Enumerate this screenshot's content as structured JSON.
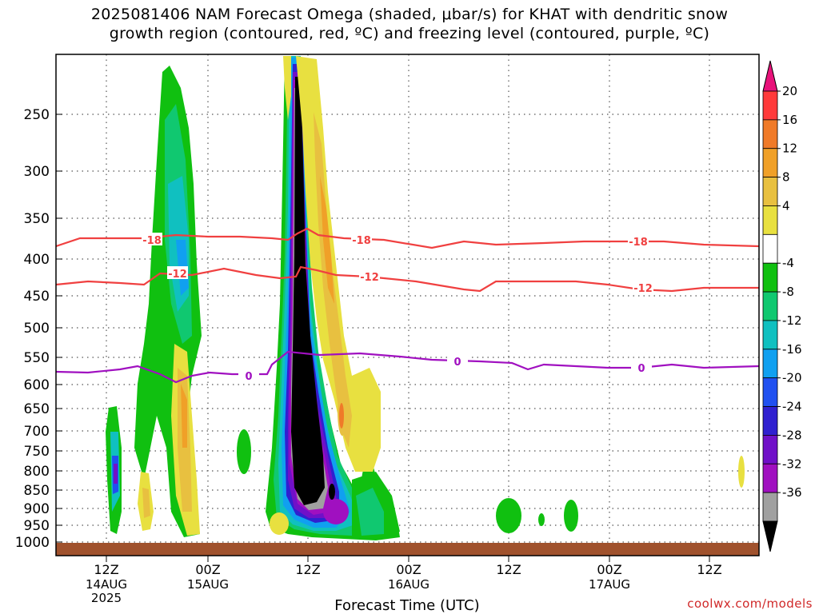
{
  "chart_data": {
    "type": "heatmap",
    "title_line1": "2025081406 NAM Forecast Omega (shaded, μbar/s) for KHAT with dendritic snow",
    "title_line2": "growth region (contoured, red, ºC) and freezing level (contoured, purple, ºC)",
    "xlabel": "Forecast Time (UTC)",
    "ylabel": "",
    "y_scale": "pressure (hPa), inverted",
    "y_ticks": [
      "250",
      "300",
      "350",
      "400",
      "450",
      "500",
      "550",
      "600",
      "650",
      "700",
      "750",
      "800",
      "850",
      "900",
      "950",
      "1000"
    ],
    "x_ticks": [
      {
        "label": "12Z",
        "sub1": "14AUG",
        "sub2": "2025"
      },
      {
        "label": "00Z",
        "sub1": "15AUG",
        "sub2": ""
      },
      {
        "label": "12Z",
        "sub1": "",
        "sub2": ""
      },
      {
        "label": "00Z",
        "sub1": "16AUG",
        "sub2": ""
      },
      {
        "label": "12Z",
        "sub1": "",
        "sub2": ""
      },
      {
        "label": "00Z",
        "sub1": "17AUG",
        "sub2": ""
      },
      {
        "label": "12Z",
        "sub1": "",
        "sub2": ""
      }
    ],
    "colorbar": {
      "labels": [
        "20",
        "16",
        "12",
        "8",
        "4",
        "-4",
        "-8",
        "-12",
        "-16",
        "-20",
        "-24",
        "-28",
        "-32",
        "-36"
      ],
      "colors": [
        "#e8127a",
        "#ff3a3a",
        "#f07a28",
        "#f0a028",
        "#e8c040",
        "#e8e040",
        "#ffffff",
        "#10c010",
        "#10c870",
        "#10c0c0",
        "#10a0f0",
        "#2050f0",
        "#3020d0",
        "#7010c8",
        "#a010c0",
        "#a0a0a0",
        "#000000"
      ]
    },
    "contours": [
      {
        "name": "dendritic-upper",
        "label": "-18",
        "color": "#f04040"
      },
      {
        "name": "dendritic-lower",
        "label": "-12",
        "color": "#f04040"
      },
      {
        "name": "freezing-level",
        "label": "0",
        "color": "#a010c0"
      }
    ],
    "ground_color": "#a0522d",
    "grid": true
  },
  "footer": {
    "credit": "coolwx.com/models"
  }
}
